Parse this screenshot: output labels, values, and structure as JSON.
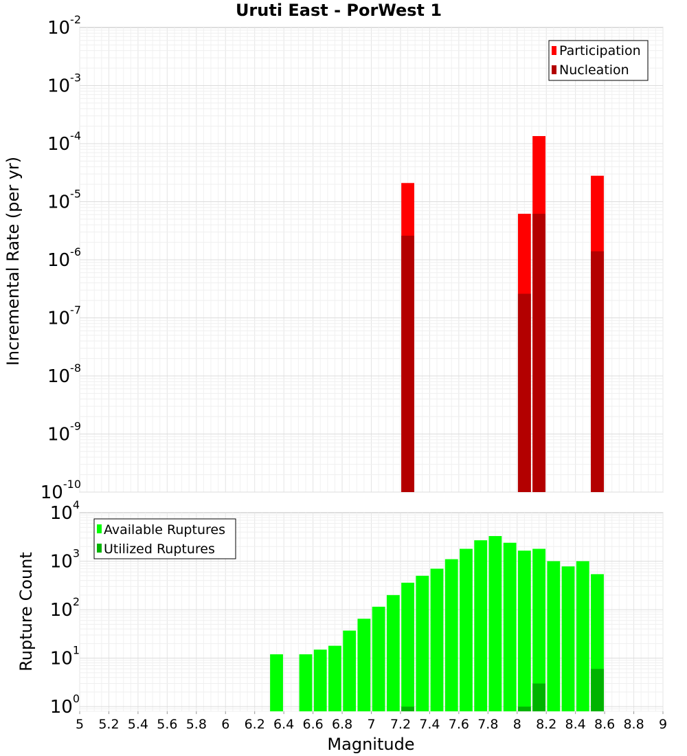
{
  "chart_data": [
    {
      "type": "bar",
      "title": "Uruti East - PorWest 1",
      "xlabel": "Magnitude",
      "ylabel": "Incremental Rate (per yr)",
      "yscale": "log",
      "xlim": [
        5,
        9
      ],
      "ylim": [
        1e-10,
        0.01
      ],
      "bar_width": 0.1,
      "legend_position": "top-right",
      "y_ticks": [
        {
          "base": "10",
          "exp": "-10",
          "value": 1e-10
        },
        {
          "base": "10",
          "exp": "-9",
          "value": 1e-09
        },
        {
          "base": "10",
          "exp": "-8",
          "value": 1e-08
        },
        {
          "base": "10",
          "exp": "-7",
          "value": 1e-07
        },
        {
          "base": "10",
          "exp": "-6",
          "value": 1e-06
        },
        {
          "base": "10",
          "exp": "-5",
          "value": 1e-05
        },
        {
          "base": "10",
          "exp": "-4",
          "value": 0.0001
        },
        {
          "base": "10",
          "exp": "-3",
          "value": 0.001
        },
        {
          "base": "10",
          "exp": "-2",
          "value": 0.01
        }
      ],
      "series": [
        {
          "name": "Participation",
          "color": "#ff0000",
          "points": [
            {
              "x": 7.25,
              "y": 2.1e-05
            },
            {
              "x": 8.05,
              "y": 6.2e-06
            },
            {
              "x": 8.15,
              "y": 0.000135
            },
            {
              "x": 8.55,
              "y": 2.8e-05
            }
          ]
        },
        {
          "name": "Nucleation",
          "color": "#b30000",
          "points": [
            {
              "x": 7.25,
              "y": 2.6e-06
            },
            {
              "x": 8.05,
              "y": 2.6e-07
            },
            {
              "x": 8.15,
              "y": 6.2e-06
            },
            {
              "x": 8.55,
              "y": 1.4e-06
            }
          ]
        }
      ]
    },
    {
      "type": "bar",
      "xlabel": "Magnitude",
      "ylabel": "Rupture Count",
      "yscale": "log",
      "xlim": [
        5,
        9
      ],
      "ylim": [
        0.8,
        10000
      ],
      "bar_width": 0.1,
      "legend_position": "top-left",
      "x_ticks": [
        "5",
        "5.2",
        "5.4",
        "5.6",
        "5.8",
        "6",
        "6.2",
        "6.4",
        "6.6",
        "6.8",
        "7",
        "7.2",
        "7.4",
        "7.6",
        "7.8",
        "8",
        "8.2",
        "8.4",
        "8.6",
        "8.8",
        "9"
      ],
      "y_ticks": [
        {
          "base": "10",
          "exp": "0",
          "value": 1
        },
        {
          "base": "10",
          "exp": "1",
          "value": 10
        },
        {
          "base": "10",
          "exp": "2",
          "value": 100
        },
        {
          "base": "10",
          "exp": "3",
          "value": 1000
        },
        {
          "base": "10",
          "exp": "4",
          "value": 10000
        }
      ],
      "series": [
        {
          "name": "Available Ruptures",
          "color": "#00ff00",
          "points": [
            {
              "x": 6.35,
              "y": 12
            },
            {
              "x": 6.55,
              "y": 12
            },
            {
              "x": 6.65,
              "y": 15
            },
            {
              "x": 6.75,
              "y": 18
            },
            {
              "x": 6.85,
              "y": 37
            },
            {
              "x": 6.95,
              "y": 65
            },
            {
              "x": 7.05,
              "y": 115
            },
            {
              "x": 7.15,
              "y": 200
            },
            {
              "x": 7.25,
              "y": 360
            },
            {
              "x": 7.35,
              "y": 500
            },
            {
              "x": 7.45,
              "y": 700
            },
            {
              "x": 7.55,
              "y": 1100
            },
            {
              "x": 7.65,
              "y": 1800
            },
            {
              "x": 7.75,
              "y": 2700
            },
            {
              "x": 7.85,
              "y": 3300
            },
            {
              "x": 7.95,
              "y": 2400
            },
            {
              "x": 8.05,
              "y": 1650
            },
            {
              "x": 8.15,
              "y": 1800
            },
            {
              "x": 8.25,
              "y": 1000
            },
            {
              "x": 8.35,
              "y": 780
            },
            {
              "x": 8.45,
              "y": 1000
            },
            {
              "x": 8.55,
              "y": 540
            }
          ]
        },
        {
          "name": "Utilized Ruptures",
          "color": "#00b300",
          "points": [
            {
              "x": 7.25,
              "y": 1
            },
            {
              "x": 8.05,
              "y": 1
            },
            {
              "x": 8.15,
              "y": 3
            },
            {
              "x": 8.55,
              "y": 6
            }
          ]
        }
      ]
    }
  ]
}
